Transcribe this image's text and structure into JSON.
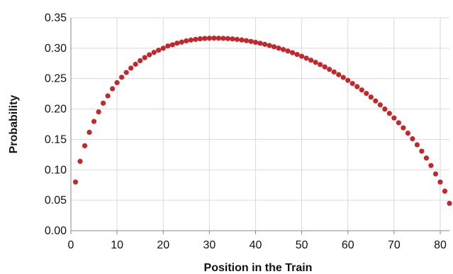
{
  "chart_data": {
    "type": "scatter",
    "title": "",
    "xlabel": "Position in the Train",
    "ylabel": "Probability",
    "xlim": [
      0,
      82
    ],
    "ylim": [
      0,
      0.35
    ],
    "x_ticks": [
      "0",
      "10",
      "20",
      "30",
      "40",
      "50",
      "60",
      "70",
      "80"
    ],
    "y_ticks": [
      "0.00",
      "0.05",
      "0.10",
      "0.15",
      "0.20",
      "0.25",
      "0.30",
      "0.35"
    ],
    "grid": true,
    "legend": "none",
    "marker_color": "#c0282d",
    "series": [
      {
        "x": [
          1,
          2,
          3,
          4,
          5,
          6,
          7,
          8,
          9,
          10,
          11,
          12,
          13,
          14,
          15,
          16,
          17,
          18,
          19,
          20,
          21,
          22,
          23,
          24,
          25,
          26,
          27,
          28,
          29,
          30,
          31,
          32,
          33,
          34,
          35,
          36,
          37,
          38,
          39,
          40,
          41,
          42,
          43,
          44,
          45,
          46,
          47,
          48,
          49,
          50,
          51,
          52,
          53,
          54,
          55,
          56,
          57,
          58,
          59,
          60,
          61,
          62,
          63,
          64,
          65,
          66,
          67,
          68,
          69,
          70,
          71,
          72,
          73,
          74,
          75,
          76,
          77,
          78,
          79,
          80,
          81,
          82
        ],
        "y": [
          0.08,
          0.114,
          0.1396,
          0.1617,
          0.1796,
          0.1953,
          0.2096,
          0.2216,
          0.2333,
          0.2433,
          0.2522,
          0.2601,
          0.2672,
          0.2736,
          0.2794,
          0.2845,
          0.2891,
          0.2931,
          0.2967,
          0.2999,
          0.3036,
          0.3056,
          0.3082,
          0.31,
          0.312,
          0.3134,
          0.3145,
          0.3154,
          0.316,
          0.3163,
          0.3165,
          0.3164,
          0.3162,
          0.3158,
          0.3152,
          0.3144,
          0.3135,
          0.3124,
          0.3111,
          0.3097,
          0.3081,
          0.3063,
          0.3044,
          0.3024,
          0.3001,
          0.2978,
          0.2953,
          0.2926,
          0.2897,
          0.2867,
          0.2836,
          0.2802,
          0.2767,
          0.2731,
          0.2692,
          0.2652,
          0.2609,
          0.2565,
          0.2519,
          0.2471,
          0.242,
          0.2368,
          0.2313,
          0.2256,
          0.2196,
          0.2133,
          0.2068,
          0.1999,
          0.1928,
          0.1853,
          0.1774,
          0.1691,
          0.1603,
          0.1511,
          0.1412,
          0.1307,
          0.1194,
          0.1071,
          0.0933,
          0.08,
          0.065,
          0.045
        ]
      }
    ]
  }
}
